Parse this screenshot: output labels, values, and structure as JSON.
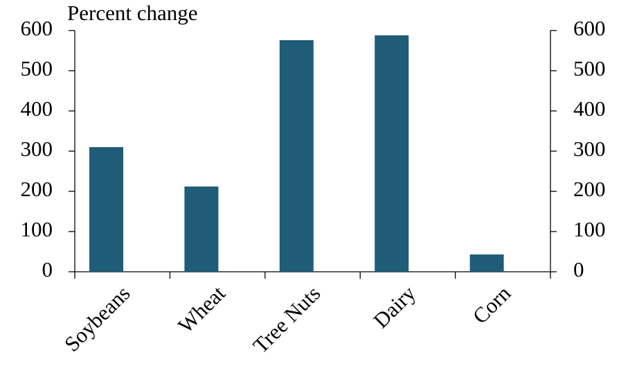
{
  "chart_data": {
    "type": "bar",
    "title": "Percent change",
    "categories": [
      "Soybeans",
      "Wheat",
      "Tree Nuts",
      "Dairy",
      "Corn"
    ],
    "values": [
      310,
      212,
      576,
      588,
      43
    ],
    "color": "#1f5c78",
    "ylim": [
      0,
      600
    ],
    "yticks": [
      0,
      100,
      200,
      300,
      400,
      500,
      600
    ],
    "y2lim": [
      0,
      600
    ],
    "y2ticks": [
      0,
      100,
      200,
      300,
      400,
      500,
      600
    ],
    "grid": false
  }
}
